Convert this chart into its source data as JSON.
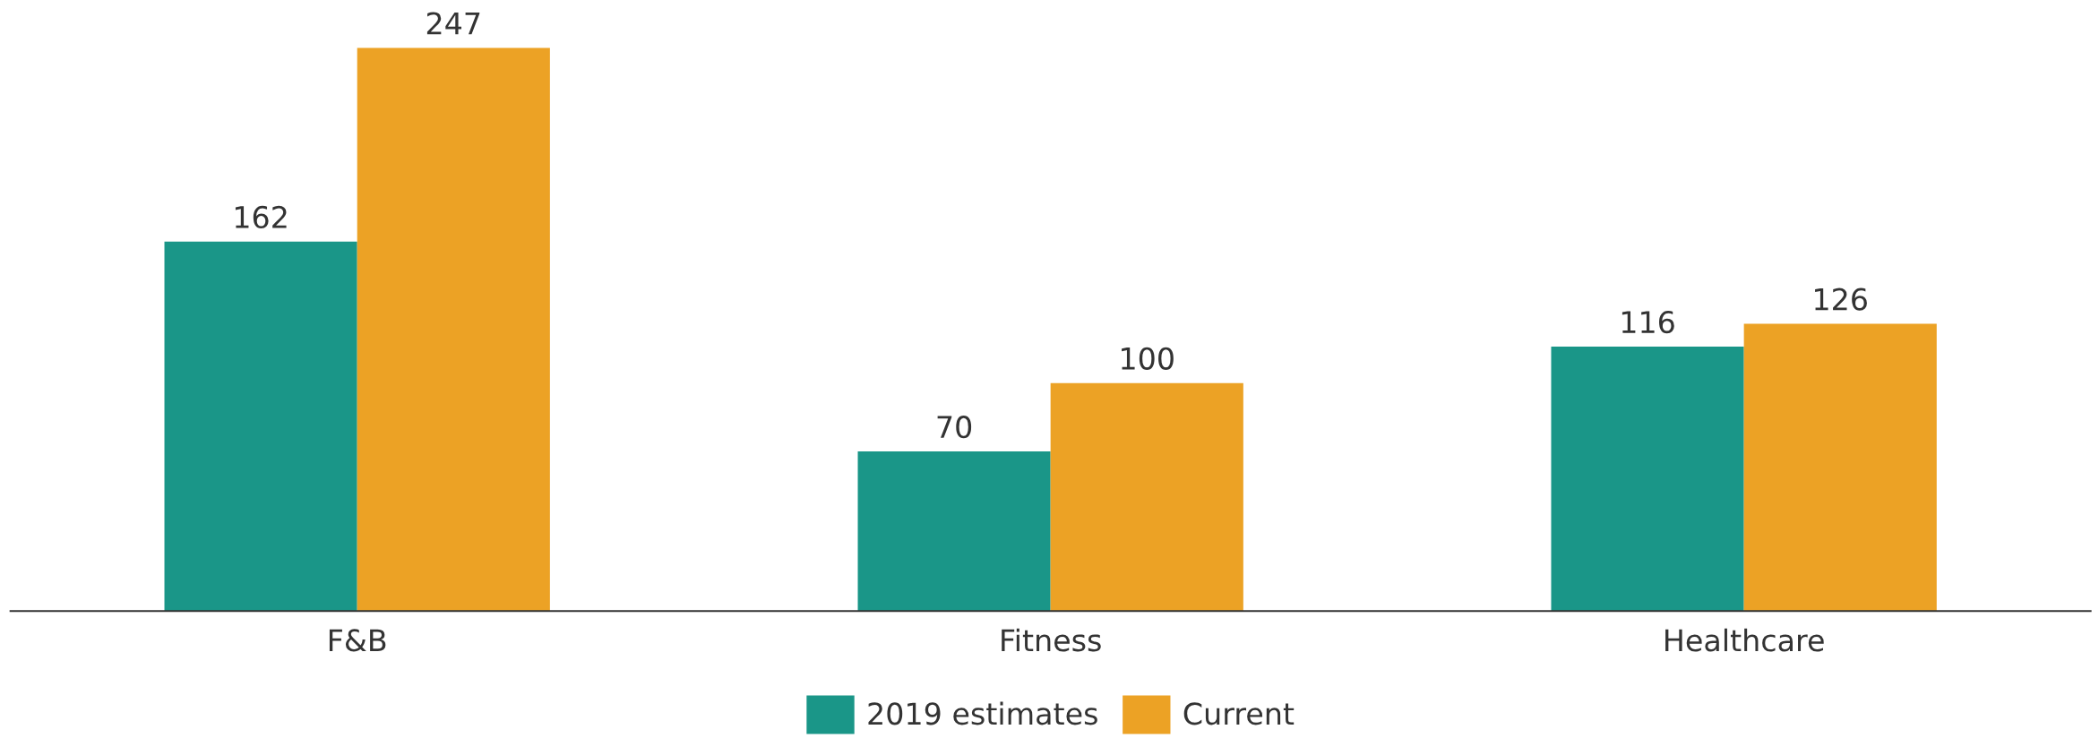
{
  "chart_data": {
    "type": "bar",
    "categories": [
      "F&B",
      "Fitness",
      "Healthcare"
    ],
    "series": [
      {
        "name": "2019 estimates",
        "color": "#1a9688",
        "values": [
          162,
          70,
          116
        ]
      },
      {
        "name": "Current",
        "color": "#eca225",
        "values": [
          247,
          100,
          126
        ]
      }
    ],
    "data_labels": true,
    "legend": "bottom",
    "grid": false,
    "tick_labels": "x"
  }
}
